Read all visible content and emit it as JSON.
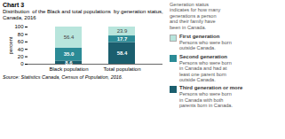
{
  "chart_data": {
    "type": "bar",
    "stacked": true,
    "title": "Chart 3",
    "subtitle": "Distribution  of the Black and total populations  by generation status, Canada, 2016",
    "ylabel": "percent",
    "categories": [
      "Black population",
      "Total population"
    ],
    "series": [
      {
        "name": "Third generation or more",
        "color": "#1b5e6e",
        "values": [
          8.6,
          58.4
        ],
        "value_labels": [
          "8.6",
          "58.4"
        ],
        "description": "Persons who were born\nin Canada with both\nparents born in Canada."
      },
      {
        "name": "Second generation",
        "color": "#2b8b96",
        "values": [
          35.0,
          17.7
        ],
        "value_labels": [
          "35.0",
          "17.7"
        ],
        "description": "Persons who were born\nin Canada and had at\nleast one parent born\noutside Canada."
      },
      {
        "name": "First generation",
        "color": "#b8e5dc",
        "values": [
          56.4,
          23.9
        ],
        "value_labels": [
          "56.4",
          "23.9"
        ],
        "description": "Persons who were born\noutside Canada."
      }
    ],
    "ylim": [
      0,
      100
    ],
    "yticks": [
      0,
      20,
      40,
      60,
      80,
      100
    ],
    "grid": false,
    "legend": "right",
    "data_labels": true,
    "annotations": [
      "Generation status\nindicates for how many\ngenerations a person\nand their family have\nbeen in Canada."
    ],
    "caption": "Source: Statistics Canada, Census of Population, 2016."
  }
}
